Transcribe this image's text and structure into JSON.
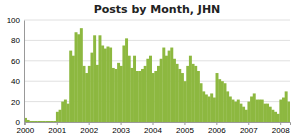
{
  "chart_data": {
    "type": "bar",
    "title": "Posts by Month, JHN",
    "categories": [
      "2000",
      null,
      null,
      null,
      null,
      null,
      null,
      null,
      null,
      null,
      null,
      null,
      "2001",
      null,
      null,
      null,
      null,
      null,
      null,
      null,
      null,
      null,
      null,
      null,
      "2002",
      null,
      null,
      null,
      null,
      null,
      null,
      null,
      null,
      null,
      null,
      null,
      "2003",
      null,
      null,
      null,
      null,
      null,
      null,
      null,
      null,
      null,
      null,
      null,
      "2004",
      null,
      null,
      null,
      null,
      null,
      null,
      null,
      null,
      null,
      null,
      null,
      "2005",
      null,
      null,
      null,
      null,
      null,
      null,
      null,
      null,
      null,
      null,
      null,
      "2006",
      null,
      null,
      null,
      null,
      null,
      null,
      null,
      null,
      null,
      null,
      null,
      "2007",
      null,
      null,
      null,
      null,
      null,
      null,
      null,
      null,
      null,
      null,
      null,
      "2008",
      null,
      null,
      null
    ],
    "values": [
      4,
      2,
      1,
      1,
      1,
      1,
      1,
      1,
      1,
      1,
      1,
      1,
      10,
      12,
      20,
      22,
      18,
      70,
      65,
      88,
      86,
      92,
      55,
      48,
      55,
      68,
      85,
      56,
      85,
      75,
      72,
      74,
      73,
      53,
      52,
      58,
      55,
      75,
      82,
      65,
      53,
      65,
      50,
      50,
      52,
      55,
      62,
      65,
      48,
      50,
      55,
      62,
      73,
      65,
      70,
      73,
      62,
      57,
      52,
      48,
      40,
      55,
      65,
      57,
      55,
      50,
      38,
      30,
      27,
      25,
      28,
      24,
      48,
      42,
      40,
      38,
      30,
      25,
      22,
      20,
      22,
      18,
      15,
      12,
      20,
      25,
      28,
      22,
      22,
      22,
      18,
      18,
      15,
      12,
      10,
      8,
      22,
      24,
      30,
      20
    ],
    "color": "#8db840",
    "ylim": [
      0,
      100
    ],
    "yticks": [
      0,
      20,
      40,
      60,
      80,
      100
    ],
    "grid": true
  }
}
